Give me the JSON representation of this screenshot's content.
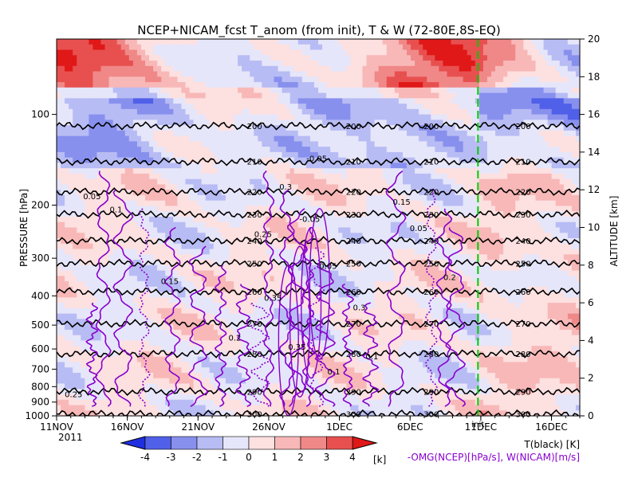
{
  "chart_data": {
    "type": "heatmap",
    "title": "NCEP+NICAM_fcst T_anom (from init), T & W  (72-80E,8S-EQ)",
    "ylabel_left": "PRESSURE [hPa]",
    "ylabel_right": "ALTITUDE [km]",
    "x_tick_labels": [
      "11NOV",
      "16NOV",
      "21NOV",
      "26NOV",
      "1DEC",
      "6DEC",
      "11DEC",
      "16DEC"
    ],
    "x_year_label": "2011",
    "x_tick_days": [
      0,
      5,
      10,
      15,
      20,
      25,
      30,
      35
    ],
    "xlim_days": [
      0,
      37
    ],
    "pressure_ticks": [
      100,
      200,
      300,
      400,
      500,
      600,
      700,
      800,
      900,
      1000
    ],
    "ylim_pressure": [
      1000,
      50
    ],
    "pressure_scale": "log",
    "altitude_ticks": [
      0,
      2,
      4,
      6,
      8,
      10,
      12,
      14,
      16,
      18,
      20
    ],
    "ylim_altitude": [
      0,
      20
    ],
    "init_line_day": 29.8,
    "init_label": "init",
    "colorbar": {
      "ticks": [
        "-4",
        "-3",
        "-2",
        "-1",
        "0",
        "1",
        "2",
        "3",
        "4"
      ],
      "unit": "[k]",
      "colors": [
        "#1f2fe0",
        "#5060e8",
        "#8890ee",
        "#b8bcf4",
        "#e6e6fa",
        "#fde0e0",
        "#f8b8b8",
        "#f08888",
        "#e85050",
        "#e01818"
      ]
    },
    "temperature_contours": {
      "color": "#000000",
      "levels": [
        {
          "value": "200",
          "altitude_km": 15.4
        },
        {
          "value": "210",
          "altitude_km": 13.5
        },
        {
          "value": "220",
          "altitude_km": 11.9
        },
        {
          "value": "230",
          "altitude_km": 10.7
        },
        {
          "value": "240",
          "altitude_km": 9.3
        },
        {
          "value": "250",
          "altitude_km": 8.1
        },
        {
          "value": "260",
          "altitude_km": 6.6
        },
        {
          "value": "270",
          "altitude_km": 4.9
        },
        {
          "value": "280",
          "altitude_km": 3.3
        },
        {
          "value": "290",
          "altitude_km": 1.3
        },
        {
          "value": "300",
          "altitude_km": 0.1
        }
      ]
    },
    "vertical_motion_labels": [
      "0.05",
      "0.1",
      "0.15",
      "0.2",
      "0.25",
      "0.3",
      "0.35",
      "-0.05"
    ],
    "legend_right": {
      "line1": "T(black) [K]",
      "line2": "-OMG(NCEP)[hPa/s], W(NICAM)[m/s]"
    },
    "colors": {
      "w_contour": "#8800cc",
      "init_line": "#00cc00"
    }
  }
}
